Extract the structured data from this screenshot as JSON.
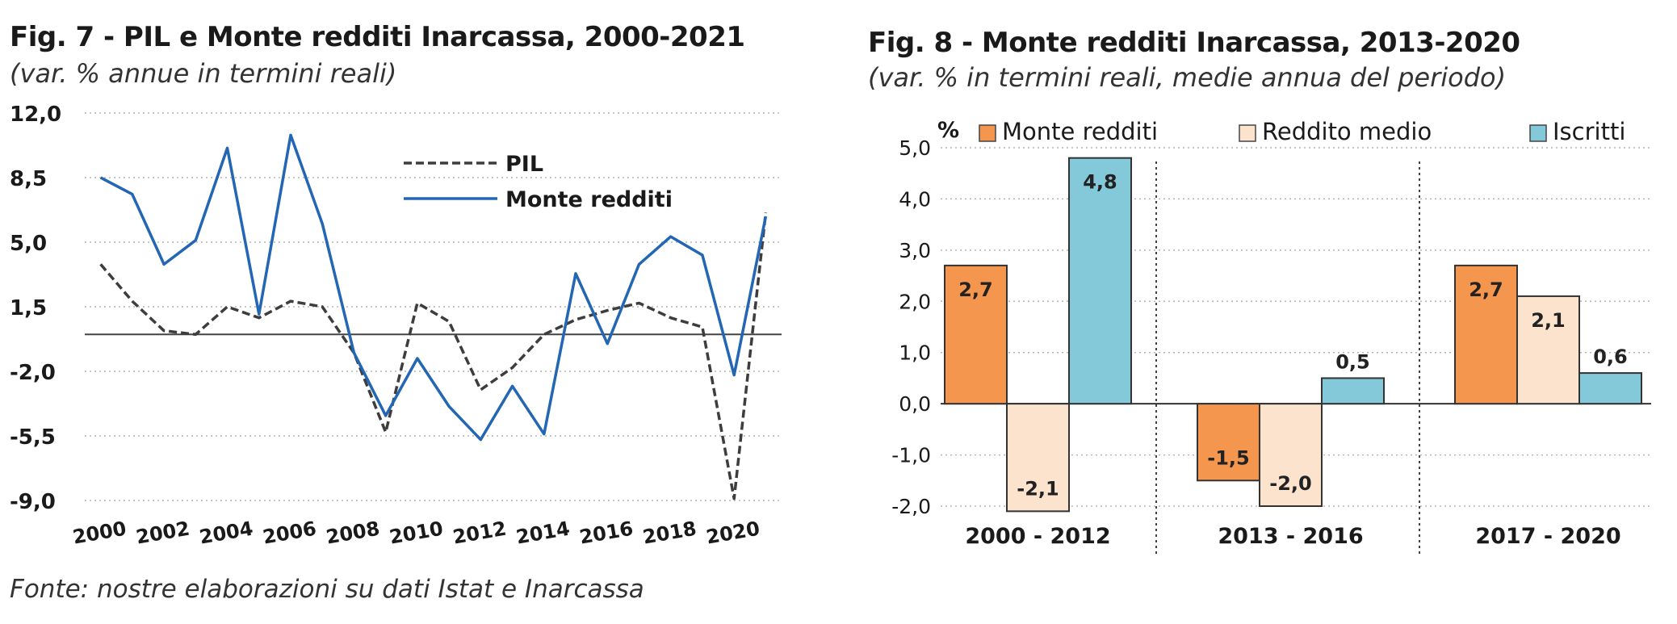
{
  "source": "Fonte: nostre elaborazioni su dati Istat e Inarcassa",
  "chart_data": [
    {
      "type": "line",
      "title": "Fig. 7 - PIL e Monte redditi Inarcassa, 2000-2021",
      "subtitle": "(var. % annue in termini reali)",
      "x": [
        2000,
        2001,
        2002,
        2003,
        2004,
        2005,
        2006,
        2007,
        2008,
        2009,
        2010,
        2011,
        2012,
        2013,
        2014,
        2015,
        2016,
        2017,
        2018,
        2019,
        2020,
        2021
      ],
      "x_tick_labels": [
        "2000",
        "2002",
        "2004",
        "2006",
        "2008",
        "2010",
        "2012",
        "2014",
        "2016",
        "2018",
        "2020"
      ],
      "y_tick_labels": [
        "12,0",
        "8,5",
        "5,0",
        "1,5",
        "-2,0",
        "-5,5",
        "-9,0"
      ],
      "ylim": [
        -9.0,
        12.0
      ],
      "grid": "horizontal dotted",
      "legend_position": "top-right",
      "series": [
        {
          "name": "PIL",
          "style": "dashed",
          "color": "#3d3d3d",
          "values": [
            3.8,
            1.8,
            0.2,
            0.0,
            1.5,
            0.9,
            1.8,
            1.5,
            -1.0,
            -5.3,
            1.7,
            0.7,
            -3.0,
            -1.8,
            0.0,
            0.8,
            1.3,
            1.7,
            0.9,
            0.4,
            -8.9,
            6.6
          ]
        },
        {
          "name": "Monte redditi",
          "style": "solid",
          "color": "#2366b4",
          "values": [
            8.5,
            7.6,
            3.8,
            5.1,
            10.1,
            1.1,
            10.8,
            6.0,
            -1.0,
            -4.4,
            -1.3,
            -3.9,
            -5.7,
            -2.8,
            -5.4,
            3.3,
            -0.5,
            3.8,
            5.3,
            4.3,
            -2.2,
            6.4
          ]
        }
      ]
    },
    {
      "type": "bar",
      "title": "Fig. 8 - Monte redditi Inarcassa, 2013-2020",
      "subtitle": "(var. % in termini reali, medie annua del periodo)",
      "unit_label": "%",
      "categories": [
        "2000 - 2012",
        "2013 - 2016",
        "2017 - 2020"
      ],
      "y_tick_labels": [
        "5,0",
        "4,0",
        "3,0",
        "2,0",
        "1,0",
        "0,0",
        "-1,0",
        "-2,0"
      ],
      "ylim": [
        -2.0,
        5.0
      ],
      "grid": "horizontal dotted",
      "legend_position": "top",
      "series": [
        {
          "name": "Monte redditi",
          "color": "#f5964f",
          "values": [
            2.7,
            -1.5,
            2.7
          ],
          "labels": [
            "2,7",
            "-1,5",
            "2,7"
          ]
        },
        {
          "name": "Reddito medio",
          "color": "#fbe3cd",
          "values": [
            -2.1,
            -2.0,
            2.1
          ],
          "labels": [
            "-2,1",
            "-2,0",
            "2,1"
          ]
        },
        {
          "name": "Iscritti",
          "color": "#83c9d9",
          "values": [
            4.8,
            0.5,
            0.6
          ],
          "labels": [
            "4,8",
            "0,5",
            "0,6"
          ]
        }
      ]
    }
  ]
}
